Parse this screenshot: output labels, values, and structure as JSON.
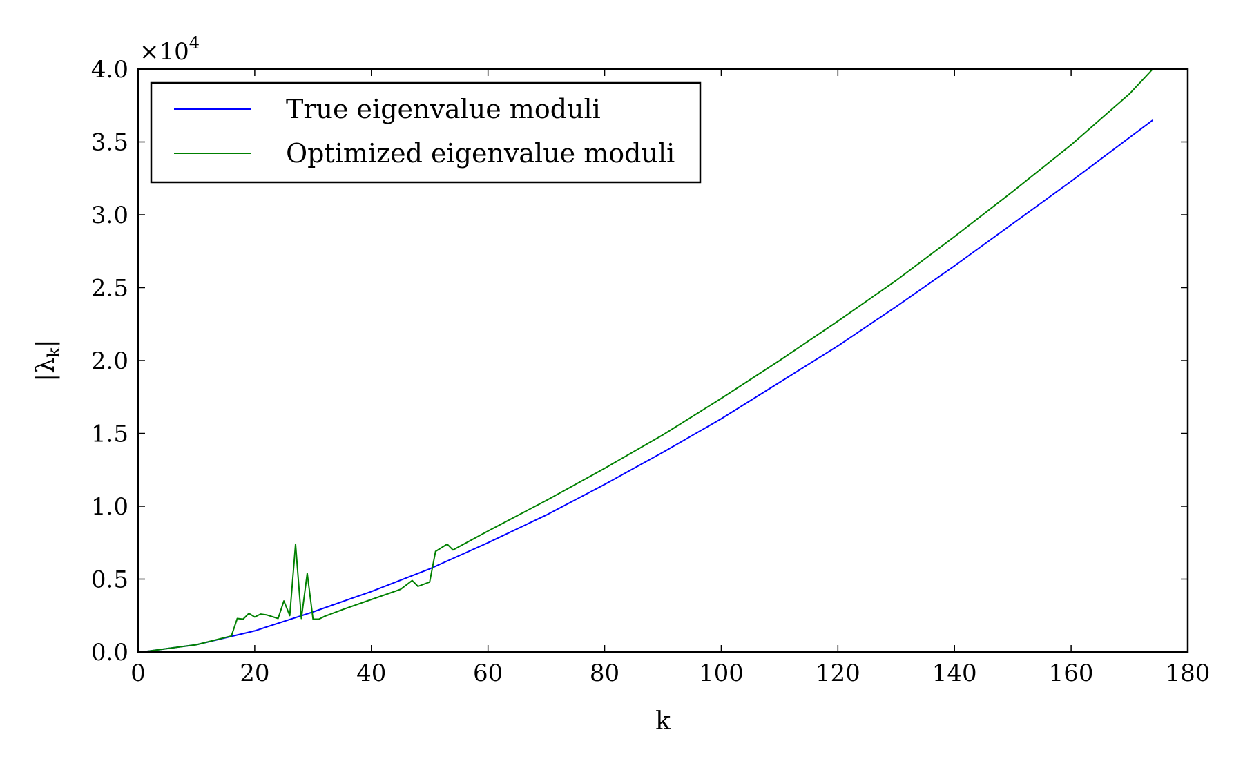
{
  "chart_data": {
    "type": "line",
    "xlabel": "k",
    "ylabel_main": "|λ",
    "ylabel_sub": "k",
    "ylabel_close": "|",
    "xlim": [
      0,
      180
    ],
    "ylim": [
      0,
      40000
    ],
    "x_ticks": [
      0,
      20,
      40,
      60,
      80,
      100,
      120,
      140,
      160,
      180
    ],
    "x_tick_labels": [
      "0",
      "20",
      "40",
      "60",
      "80",
      "100",
      "120",
      "140",
      "160",
      "180"
    ],
    "y_ticks": [
      0,
      5000,
      10000,
      15000,
      20000,
      25000,
      30000,
      35000,
      40000
    ],
    "y_tick_labels": [
      "0.0",
      "0.5",
      "1.0",
      "1.5",
      "2.0",
      "2.5",
      "3.0",
      "3.5",
      "4.0"
    ],
    "y_offset_base": "×10",
    "y_offset_exp": "4",
    "grid": false,
    "legend_position": "top-left",
    "series": [
      {
        "name": "True eigenvalue moduli",
        "color": "#0000ff",
        "x": [
          1,
          10,
          20,
          30,
          40,
          50,
          60,
          70,
          80,
          90,
          100,
          110,
          120,
          130,
          140,
          150,
          160,
          174
        ],
        "y": [
          20,
          500,
          1450,
          2750,
          4150,
          5700,
          7500,
          9400,
          11500,
          13700,
          16000,
          18500,
          21000,
          23700,
          26500,
          29400,
          32300,
          36500
        ]
      },
      {
        "name": "Optimized eigenvalue moduli",
        "color": "#008000",
        "x": [
          1,
          10,
          16,
          17,
          18,
          19,
          20,
          21,
          22,
          24,
          25,
          26,
          27,
          28,
          29,
          30,
          31,
          32,
          35,
          40,
          45,
          47,
          48,
          50,
          51,
          53,
          54,
          60,
          70,
          80,
          90,
          100,
          110,
          120,
          130,
          140,
          150,
          160,
          170,
          174
        ],
        "y": [
          20,
          500,
          1100,
          2300,
          2250,
          2650,
          2400,
          2600,
          2550,
          2300,
          3500,
          2500,
          7400,
          2300,
          5400,
          2250,
          2250,
          2450,
          2900,
          3600,
          4300,
          4900,
          4500,
          4800,
          6900,
          7400,
          7000,
          8300,
          10400,
          12600,
          14900,
          17400,
          20000,
          22700,
          25500,
          28500,
          31600,
          34800,
          38300,
          40000
        ]
      }
    ]
  }
}
